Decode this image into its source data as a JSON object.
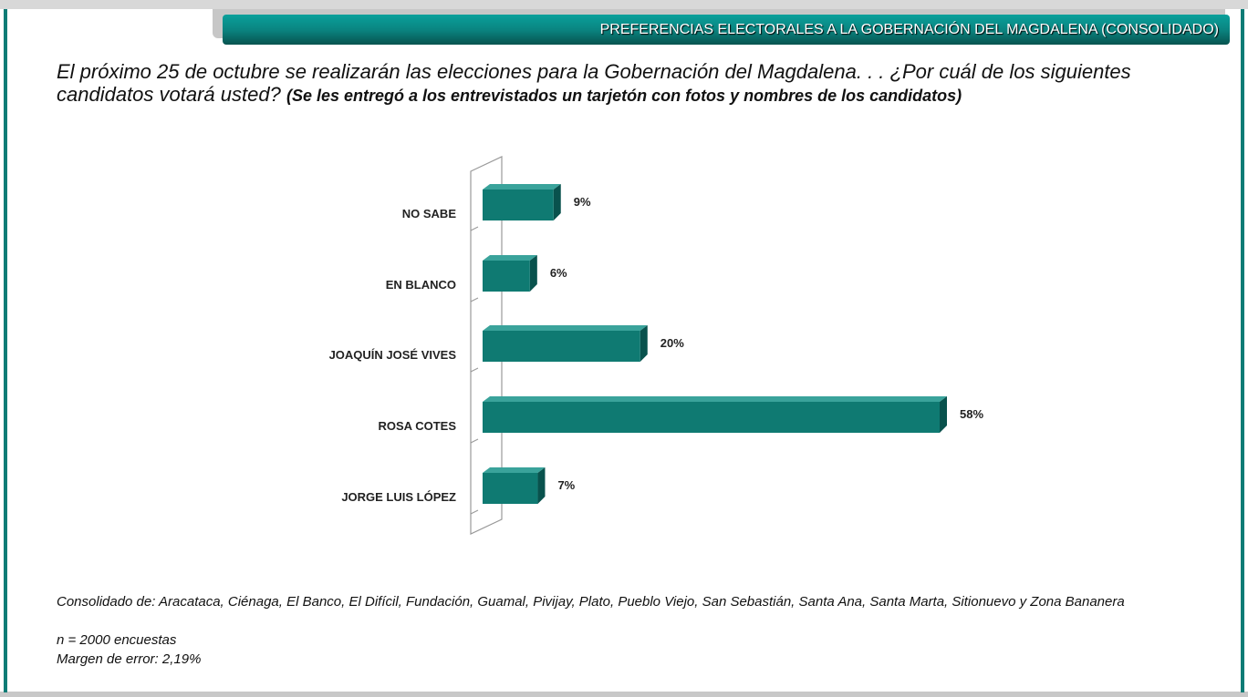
{
  "header": {
    "title": "PREFERENCIAS ELECTORALES A LA GOBERNACIÓN DEL MAGDALENA (CONSOLIDADO)"
  },
  "question": {
    "main": "El próximo 25 de octubre se realizarán las elecciones para la Gobernación del Magdalena. . .  ¿Por cuál de los siguientes candidatos votará usted?",
    "note": "(Se les entregó a los entrevistados un tarjetón con fotos y nombres de los candidatos)"
  },
  "chart_data": {
    "type": "bar",
    "orientation": "horizontal",
    "categories": [
      "NO SABE",
      "EN BLANCO",
      "JOAQUÍN JOSÉ VIVES",
      "ROSA COTES",
      "JORGE LUIS LÓPEZ"
    ],
    "values": [
      9,
      6,
      20,
      58,
      7
    ],
    "value_labels": [
      "9%",
      "6%",
      "20%",
      "58%",
      "7%"
    ],
    "color": "#0f7a72",
    "xlim": [
      0,
      60
    ]
  },
  "footer": {
    "municipalities": "Consolidado de: Aracataca, Ciénaga, El Banco, El Difícil, Fundación, Guamal, Pivijay, Plato, Pueblo Viejo, San Sebastián, Santa Ana, Santa Marta, Sitionuevo y Zona Bananera",
    "n": "n = 2000 encuestas",
    "margin": "Margen de error: 2,19%"
  }
}
